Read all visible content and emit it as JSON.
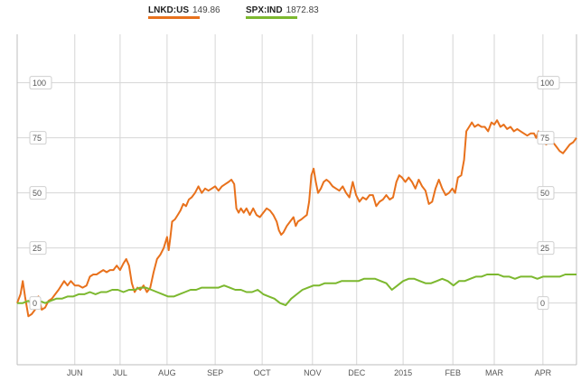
{
  "legend": {
    "items": [
      {
        "symbol": "LNKD:US",
        "value": "149.86",
        "color": "#e8711c"
      },
      {
        "symbol": "SPX:IND",
        "value": "1872.83",
        "color": "#7cb82f"
      }
    ]
  },
  "chart_data": {
    "type": "line",
    "ylim": [
      -28,
      122
    ],
    "y_ticks": [
      0,
      25,
      50,
      75,
      100
    ],
    "y_tick_labels": [
      "0",
      "25",
      "50",
      "75",
      "100"
    ],
    "x_domain": [
      0,
      100
    ],
    "x_labels": [
      {
        "label": "JUN",
        "pos": 10.3
      },
      {
        "label": "JUL",
        "pos": 18.4
      },
      {
        "label": "AUG",
        "pos": 26.8
      },
      {
        "label": "SEP",
        "pos": 35.4
      },
      {
        "label": "OCT",
        "pos": 43.8
      },
      {
        "label": "NOV",
        "pos": 52.8
      },
      {
        "label": "DEC",
        "pos": 60.7
      },
      {
        "label": "2015",
        "pos": 69.0
      },
      {
        "label": "FEB",
        "pos": 77.9
      },
      {
        "label": "MAR",
        "pos": 85.3
      },
      {
        "label": "APR",
        "pos": 94.0
      }
    ],
    "series": [
      {
        "name": "LNKD:US",
        "color": "#e8711c",
        "points": [
          [
            0,
            0
          ],
          [
            0.6,
            4
          ],
          [
            1.0,
            10
          ],
          [
            1.4,
            3
          ],
          [
            2.0,
            -6
          ],
          [
            2.6,
            -5
          ],
          [
            3.2,
            -3
          ],
          [
            3.8,
            3
          ],
          [
            4.4,
            -3
          ],
          [
            5.0,
            -2
          ],
          [
            5.6,
            1
          ],
          [
            6.2,
            2
          ],
          [
            6.8,
            4
          ],
          [
            7.4,
            6
          ],
          [
            7.9,
            8
          ],
          [
            8.4,
            10
          ],
          [
            9.0,
            8
          ],
          [
            9.6,
            10
          ],
          [
            10.3,
            8
          ],
          [
            11.0,
            8
          ],
          [
            11.7,
            7
          ],
          [
            12.4,
            8
          ],
          [
            13.0,
            12
          ],
          [
            13.6,
            13
          ],
          [
            14.2,
            13
          ],
          [
            14.8,
            14
          ],
          [
            15.4,
            15
          ],
          [
            16.0,
            14
          ],
          [
            16.6,
            15
          ],
          [
            17.2,
            15
          ],
          [
            17.8,
            17
          ],
          [
            18.4,
            15
          ],
          [
            19.0,
            18
          ],
          [
            19.5,
            20
          ],
          [
            20.0,
            17
          ],
          [
            20.5,
            9
          ],
          [
            21.0,
            5
          ],
          [
            21.5,
            7
          ],
          [
            22.0,
            6
          ],
          [
            22.6,
            8
          ],
          [
            23.2,
            5
          ],
          [
            23.8,
            7
          ],
          [
            24.4,
            14
          ],
          [
            25.0,
            20
          ],
          [
            25.6,
            22
          ],
          [
            26.2,
            25
          ],
          [
            26.8,
            30
          ],
          [
            27.1,
            24
          ],
          [
            27.4,
            30
          ],
          [
            27.7,
            37
          ],
          [
            28.2,
            38
          ],
          [
            28.7,
            40
          ],
          [
            29.2,
            42
          ],
          [
            29.7,
            45
          ],
          [
            30.2,
            44
          ],
          [
            30.7,
            47
          ],
          [
            31.2,
            48
          ],
          [
            31.8,
            50
          ],
          [
            32.4,
            53
          ],
          [
            33.0,
            50
          ],
          [
            33.6,
            52
          ],
          [
            34.2,
            51
          ],
          [
            34.8,
            52
          ],
          [
            35.4,
            53
          ],
          [
            36.0,
            51
          ],
          [
            36.6,
            53
          ],
          [
            37.2,
            54
          ],
          [
            37.8,
            55
          ],
          [
            38.3,
            56
          ],
          [
            38.8,
            54
          ],
          [
            39.2,
            43
          ],
          [
            39.6,
            41
          ],
          [
            40.0,
            43
          ],
          [
            40.5,
            41
          ],
          [
            41.0,
            43
          ],
          [
            41.6,
            40
          ],
          [
            42.2,
            43
          ],
          [
            42.8,
            40
          ],
          [
            43.4,
            39
          ],
          [
            44.0,
            41
          ],
          [
            44.6,
            43
          ],
          [
            45.2,
            42
          ],
          [
            45.8,
            40
          ],
          [
            46.4,
            37
          ],
          [
            46.8,
            33
          ],
          [
            47.2,
            31
          ],
          [
            47.6,
            32
          ],
          [
            48.2,
            35
          ],
          [
            48.8,
            37
          ],
          [
            49.4,
            39
          ],
          [
            49.8,
            35
          ],
          [
            50.2,
            37
          ],
          [
            50.8,
            38
          ],
          [
            51.3,
            39
          ],
          [
            51.8,
            40
          ],
          [
            52.2,
            46
          ],
          [
            52.6,
            58
          ],
          [
            53.0,
            61
          ],
          [
            53.4,
            55
          ],
          [
            53.8,
            50
          ],
          [
            54.3,
            52
          ],
          [
            54.8,
            55
          ],
          [
            55.3,
            56
          ],
          [
            55.8,
            55
          ],
          [
            56.4,
            53
          ],
          [
            57.0,
            52
          ],
          [
            57.6,
            51
          ],
          [
            58.2,
            53
          ],
          [
            58.8,
            50
          ],
          [
            59.4,
            48
          ],
          [
            60.0,
            55
          ],
          [
            60.6,
            49
          ],
          [
            61.2,
            46
          ],
          [
            61.8,
            48
          ],
          [
            62.4,
            47
          ],
          [
            63.0,
            49
          ],
          [
            63.6,
            49
          ],
          [
            64.2,
            44
          ],
          [
            64.8,
            46
          ],
          [
            65.4,
            47
          ],
          [
            66.0,
            49
          ],
          [
            66.6,
            47
          ],
          [
            67.2,
            48
          ],
          [
            67.8,
            55
          ],
          [
            68.3,
            58
          ],
          [
            68.8,
            57
          ],
          [
            69.4,
            55
          ],
          [
            70.0,
            57
          ],
          [
            70.6,
            55
          ],
          [
            71.2,
            52
          ],
          [
            71.8,
            56
          ],
          [
            72.4,
            53
          ],
          [
            73.0,
            51
          ],
          [
            73.6,
            45
          ],
          [
            74.2,
            46
          ],
          [
            74.8,
            52
          ],
          [
            75.4,
            56
          ],
          [
            76.0,
            52
          ],
          [
            76.6,
            49
          ],
          [
            77.2,
            50
          ],
          [
            77.8,
            52
          ],
          [
            78.3,
            50
          ],
          [
            78.8,
            57
          ],
          [
            79.4,
            58
          ],
          [
            79.9,
            65
          ],
          [
            80.3,
            78
          ],
          [
            80.8,
            80
          ],
          [
            81.3,
            82
          ],
          [
            81.8,
            80
          ],
          [
            82.4,
            81
          ],
          [
            83.0,
            80
          ],
          [
            83.6,
            80
          ],
          [
            84.2,
            78
          ],
          [
            84.8,
            82
          ],
          [
            85.3,
            81
          ],
          [
            85.8,
            83
          ],
          [
            86.4,
            80
          ],
          [
            87.0,
            81
          ],
          [
            87.6,
            79
          ],
          [
            88.2,
            80
          ],
          [
            88.8,
            78
          ],
          [
            89.4,
            79
          ],
          [
            90.0,
            78
          ],
          [
            90.6,
            77
          ],
          [
            91.2,
            76
          ],
          [
            91.8,
            77
          ],
          [
            92.4,
            77
          ],
          [
            92.8,
            75
          ],
          [
            93.2,
            78
          ],
          [
            93.6,
            75
          ],
          [
            94.0,
            73
          ],
          [
            94.6,
            72
          ],
          [
            95.2,
            74
          ],
          [
            95.8,
            73
          ],
          [
            96.4,
            71
          ],
          [
            97.0,
            69
          ],
          [
            97.6,
            68
          ],
          [
            98.2,
            70
          ],
          [
            98.8,
            72
          ],
          [
            99.4,
            73
          ],
          [
            100,
            75
          ]
        ]
      },
      {
        "name": "SPX:IND",
        "color": "#7cb82f",
        "points": [
          [
            0,
            0
          ],
          [
            1,
            0
          ],
          [
            2,
            1
          ],
          [
            3,
            -1
          ],
          [
            4,
            1
          ],
          [
            5,
            0
          ],
          [
            6,
            1
          ],
          [
            7,
            2
          ],
          [
            8,
            2
          ],
          [
            9,
            3
          ],
          [
            10,
            3
          ],
          [
            11,
            4
          ],
          [
            12,
            4
          ],
          [
            13,
            5
          ],
          [
            14,
            4
          ],
          [
            15,
            5
          ],
          [
            16,
            5
          ],
          [
            17,
            6
          ],
          [
            18,
            6
          ],
          [
            19,
            5
          ],
          [
            20,
            6
          ],
          [
            21,
            6
          ],
          [
            22,
            7
          ],
          [
            23,
            7
          ],
          [
            24,
            6
          ],
          [
            25,
            5
          ],
          [
            26,
            4
          ],
          [
            27,
            3
          ],
          [
            28,
            3
          ],
          [
            29,
            4
          ],
          [
            30,
            5
          ],
          [
            31,
            6
          ],
          [
            32,
            6
          ],
          [
            33,
            7
          ],
          [
            34,
            7
          ],
          [
            35,
            7
          ],
          [
            36,
            7
          ],
          [
            37,
            8
          ],
          [
            38,
            7
          ],
          [
            39,
            6
          ],
          [
            40,
            6
          ],
          [
            41,
            5
          ],
          [
            42,
            5
          ],
          [
            43,
            6
          ],
          [
            44,
            4
          ],
          [
            45,
            3
          ],
          [
            46,
            2
          ],
          [
            47,
            0
          ],
          [
            48,
            -1
          ],
          [
            49,
            2
          ],
          [
            50,
            4
          ],
          [
            51,
            6
          ],
          [
            52,
            7
          ],
          [
            53,
            8
          ],
          [
            54,
            8
          ],
          [
            55,
            9
          ],
          [
            56,
            9
          ],
          [
            57,
            9
          ],
          [
            58,
            10
          ],
          [
            59,
            10
          ],
          [
            60,
            10
          ],
          [
            61,
            10
          ],
          [
            62,
            11
          ],
          [
            63,
            11
          ],
          [
            64,
            11
          ],
          [
            65,
            10
          ],
          [
            66,
            9
          ],
          [
            67,
            6
          ],
          [
            68,
            8
          ],
          [
            69,
            10
          ],
          [
            70,
            11
          ],
          [
            71,
            11
          ],
          [
            72,
            10
          ],
          [
            73,
            9
          ],
          [
            74,
            9
          ],
          [
            75,
            10
          ],
          [
            76,
            11
          ],
          [
            77,
            10
          ],
          [
            78,
            8
          ],
          [
            79,
            10
          ],
          [
            80,
            10
          ],
          [
            81,
            11
          ],
          [
            82,
            12
          ],
          [
            83,
            12
          ],
          [
            84,
            13
          ],
          [
            85,
            13
          ],
          [
            86,
            13
          ],
          [
            87,
            12
          ],
          [
            88,
            12
          ],
          [
            89,
            11
          ],
          [
            90,
            12
          ],
          [
            91,
            12
          ],
          [
            92,
            12
          ],
          [
            93,
            11
          ],
          [
            94,
            12
          ],
          [
            95,
            12
          ],
          [
            96,
            12
          ],
          [
            97,
            12
          ],
          [
            98,
            13
          ],
          [
            99,
            13
          ],
          [
            100,
            13
          ]
        ]
      }
    ]
  }
}
